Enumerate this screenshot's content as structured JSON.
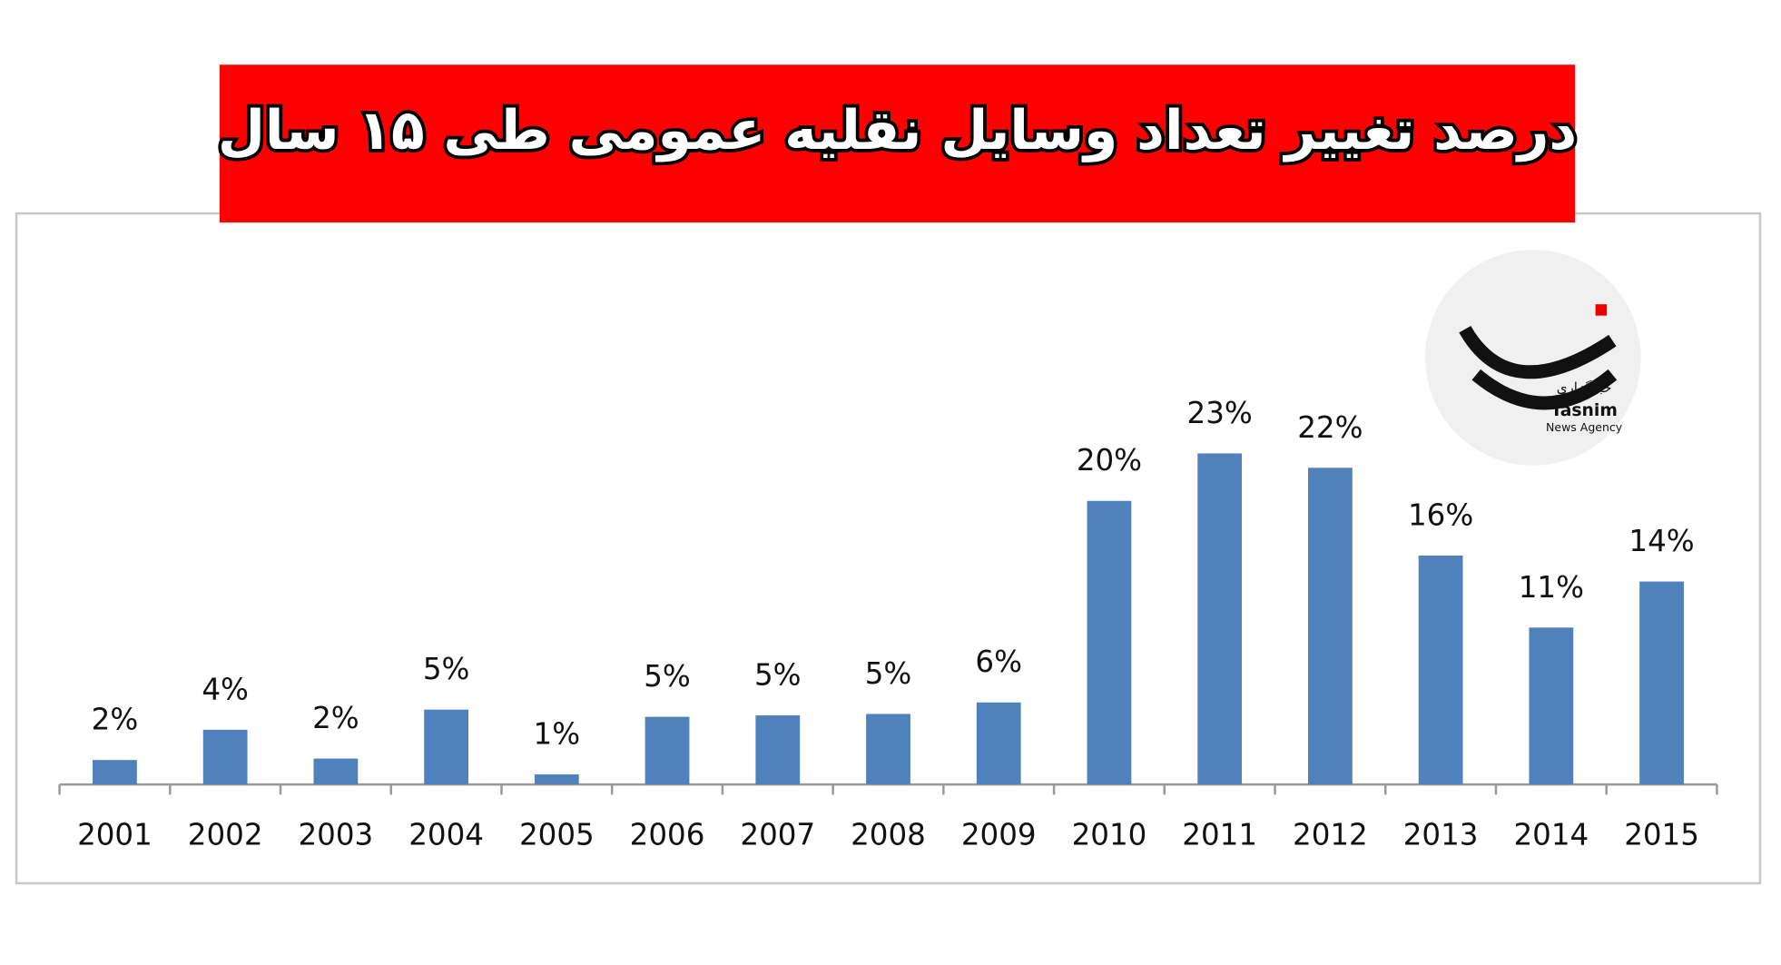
{
  "chart_data": {
    "type": "bar",
    "title": "درصد تغییر تعداد وسایل نقلیه عمومی طی ۱۵ سال",
    "categories": [
      "2001",
      "2002",
      "2003",
      "2004",
      "2005",
      "2006",
      "2007",
      "2008",
      "2009",
      "2010",
      "2011",
      "2012",
      "2013",
      "2014",
      "2015"
    ],
    "values": [
      1.7,
      3.8,
      1.8,
      5.2,
      0.7,
      4.7,
      4.8,
      4.9,
      5.7,
      19.7,
      23,
      22,
      15.9,
      10.9,
      14.1
    ],
    "value_labels": [
      "2%",
      "4%",
      "2%",
      "5%",
      "1%",
      "5%",
      "5%",
      "5%",
      "6%",
      "20%",
      "23%",
      "22%",
      "16%",
      "11%",
      "14%"
    ],
    "color": "#4f81bd",
    "ylim": [
      0,
      25
    ],
    "logo": {
      "name": "Tasnim",
      "subtitle": "News Agency",
      "persian": "خبرگزاری"
    }
  }
}
